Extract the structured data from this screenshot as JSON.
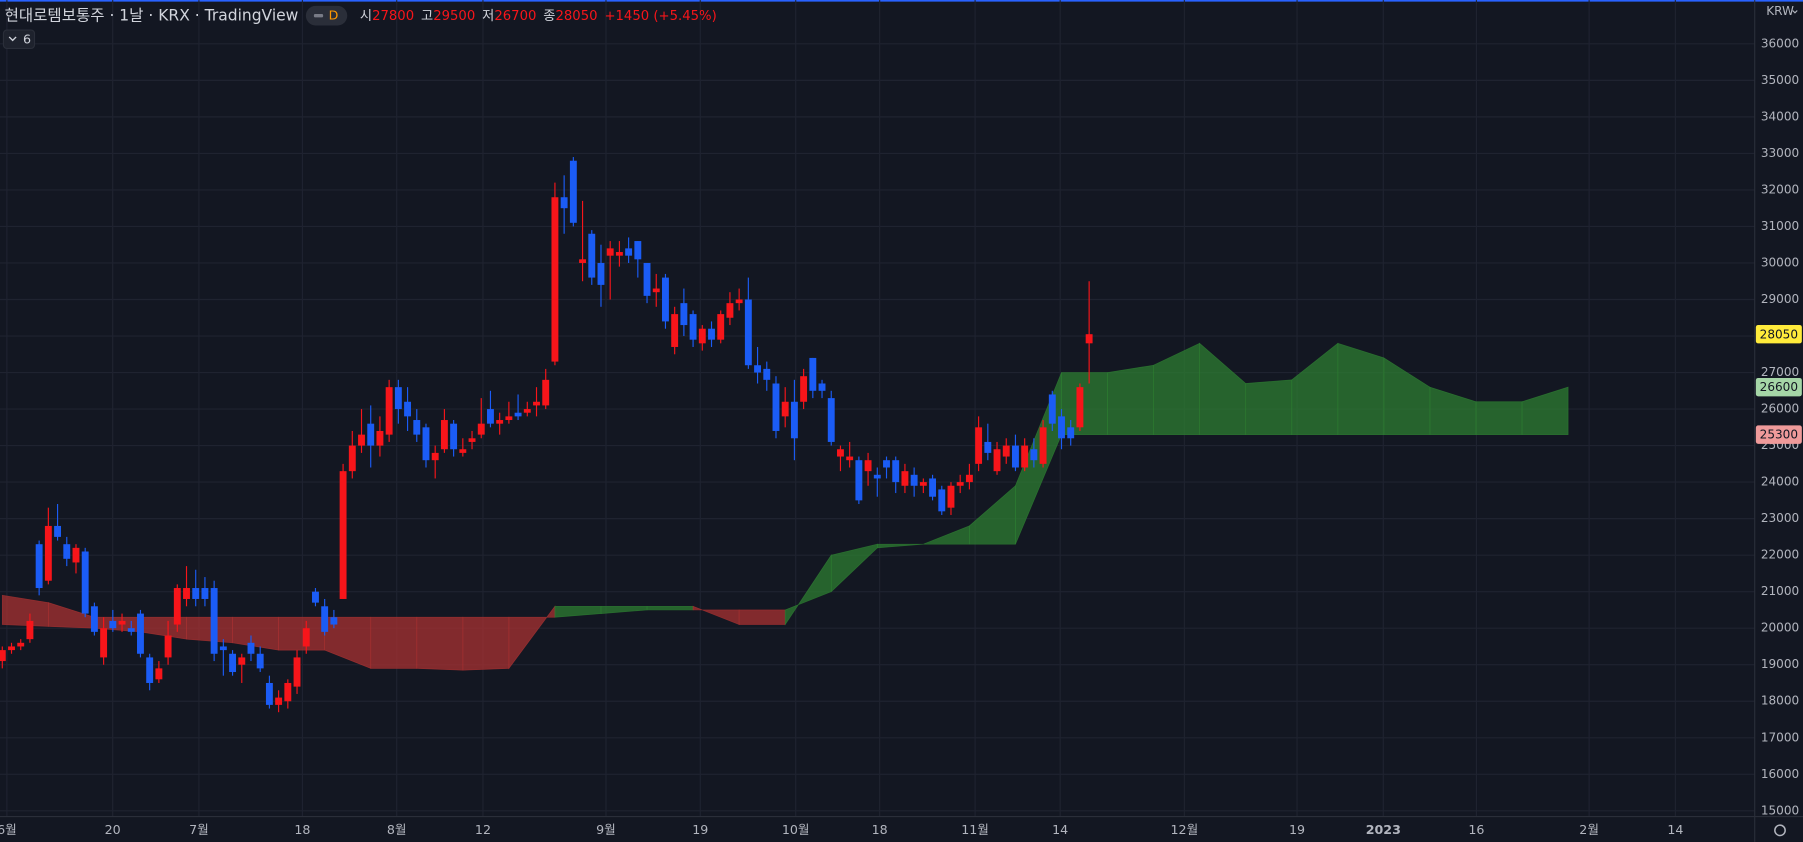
{
  "chart_data": {
    "type": "candlestick",
    "title": "현대로템보통주 · 1날 · KRX · TradingView",
    "interval_badge": "D",
    "legend": {
      "open_label": "시",
      "open": 27800,
      "high_label": "고",
      "high": 29500,
      "low_label": "저",
      "low": 26700,
      "close_label": "종",
      "close": 28050,
      "change": "+1450 (+5.45%)"
    },
    "indicator_count": "6",
    "currency": "KRW",
    "up_color": "#f7151a",
    "down_color": "#1b5cf5",
    "ylim": [
      15000,
      36000
    ],
    "yticks": [
      15000,
      16000,
      17000,
      18000,
      19000,
      20000,
      21000,
      22000,
      23000,
      24000,
      25000,
      26000,
      27000,
      28000,
      29000,
      30000,
      31000,
      32000,
      33000,
      34000,
      35000,
      36000
    ],
    "grid": true,
    "xlabels": [
      "6월",
      "20",
      "7월",
      "18",
      "8월",
      "12",
      "9월",
      "19",
      "10월",
      "18",
      "11월",
      "14",
      "12월",
      "19",
      "2023",
      "16",
      "2월",
      "14"
    ],
    "candles": [
      [
        19100,
        19500,
        18900,
        19400
      ],
      [
        19400,
        19600,
        19300,
        19500
      ],
      [
        19500,
        19700,
        19400,
        19600
      ],
      [
        19700,
        20400,
        19600,
        20200
      ],
      [
        22300,
        22400,
        20900,
        21100
      ],
      [
        21300,
        23300,
        21200,
        22800
      ],
      [
        22800,
        23400,
        22400,
        22500
      ],
      [
        22300,
        22500,
        21700,
        21900
      ],
      [
        21800,
        22300,
        21500,
        22200
      ],
      [
        22100,
        22200,
        20300,
        20400
      ],
      [
        20600,
        20700,
        19800,
        19900
      ],
      [
        19200,
        20300,
        19000,
        20000
      ],
      [
        20200,
        20500,
        19900,
        20000
      ],
      [
        20100,
        20400,
        19900,
        20200
      ],
      [
        20000,
        20200,
        19800,
        19900
      ],
      [
        20400,
        20500,
        19200,
        19300
      ],
      [
        19200,
        19300,
        18300,
        18500
      ],
      [
        18600,
        19100,
        18500,
        18900
      ],
      [
        19200,
        20200,
        19000,
        19800
      ],
      [
        20100,
        21200,
        19900,
        21100
      ],
      [
        20800,
        21700,
        20600,
        21100
      ],
      [
        21100,
        21600,
        20600,
        20800
      ],
      [
        21100,
        21400,
        20600,
        20800
      ],
      [
        21100,
        21300,
        19100,
        19300
      ],
      [
        19500,
        19700,
        18700,
        19400
      ],
      [
        19300,
        19400,
        18700,
        18800
      ],
      [
        19000,
        19300,
        18500,
        19200
      ],
      [
        19600,
        19800,
        19100,
        19300
      ],
      [
        19300,
        19500,
        18800,
        18900
      ],
      [
        18500,
        18700,
        17800,
        17900
      ],
      [
        17900,
        18300,
        17700,
        18100
      ],
      [
        18000,
        18600,
        17800,
        18500
      ],
      [
        18400,
        19400,
        18200,
        19200
      ],
      [
        19500,
        20200,
        19300,
        20000
      ],
      [
        21000,
        21100,
        20600,
        20700
      ],
      [
        20600,
        20800,
        19800,
        19900
      ],
      [
        20300,
        20500,
        20000,
        20100
      ],
      [
        20800,
        24500,
        20800,
        24300
      ],
      [
        24300,
        25400,
        24100,
        25000
      ],
      [
        25000,
        26000,
        24800,
        25300
      ],
      [
        25600,
        26100,
        24400,
        25000
      ],
      [
        25000,
        25800,
        24700,
        25400
      ],
      [
        25300,
        26800,
        25100,
        26600
      ],
      [
        26600,
        26800,
        25600,
        26000
      ],
      [
        26200,
        26600,
        25400,
        25800
      ],
      [
        25700,
        26000,
        25100,
        25300
      ],
      [
        25500,
        25600,
        24400,
        24600
      ],
      [
        24600,
        25000,
        24100,
        24800
      ],
      [
        24900,
        26000,
        24800,
        25700
      ],
      [
        25600,
        25700,
        24700,
        24900
      ],
      [
        24800,
        25200,
        24700,
        24900
      ],
      [
        25100,
        25400,
        24900,
        25200
      ],
      [
        25300,
        26300,
        25200,
        25600
      ],
      [
        26000,
        26500,
        25500,
        25600
      ],
      [
        25600,
        25900,
        25300,
        25700
      ],
      [
        25700,
        26200,
        25600,
        25800
      ],
      [
        25900,
        26400,
        25700,
        25800
      ],
      [
        25900,
        26200,
        25800,
        26000
      ],
      [
        26100,
        26600,
        25800,
        26200
      ],
      [
        26100,
        27100,
        26000,
        26800
      ],
      [
        27300,
        32200,
        27200,
        31800
      ],
      [
        31800,
        32400,
        30800,
        31500
      ],
      [
        32800,
        32900,
        31000,
        31100
      ],
      [
        30000,
        31700,
        29500,
        30100
      ],
      [
        30800,
        30900,
        29400,
        29600
      ],
      [
        30000,
        30500,
        28800,
        29400
      ],
      [
        30200,
        30600,
        29000,
        30400
      ],
      [
        30200,
        30600,
        29900,
        30300
      ],
      [
        30400,
        30700,
        30000,
        30200
      ],
      [
        30600,
        30600,
        29600,
        30100
      ],
      [
        30000,
        30000,
        28900,
        29100
      ],
      [
        29200,
        29700,
        28800,
        29300
      ],
      [
        29600,
        29700,
        28200,
        28400
      ],
      [
        27700,
        28800,
        27500,
        28600
      ],
      [
        28900,
        29300,
        28000,
        28300
      ],
      [
        28600,
        28700,
        27700,
        27900
      ],
      [
        27800,
        28300,
        27600,
        28200
      ],
      [
        28200,
        28400,
        27700,
        27900
      ],
      [
        27900,
        28700,
        27800,
        28600
      ],
      [
        28500,
        29200,
        28300,
        28900
      ],
      [
        28900,
        29300,
        28700,
        29000
      ],
      [
        29000,
        29600,
        27100,
        27200
      ],
      [
        27200,
        27700,
        26700,
        27000
      ],
      [
        27100,
        27300,
        26500,
        26800
      ],
      [
        26700,
        26900,
        25200,
        25400
      ],
      [
        25800,
        26600,
        25500,
        26200
      ],
      [
        26200,
        26800,
        24600,
        25200
      ],
      [
        26200,
        27100,
        26000,
        26900
      ],
      [
        27400,
        27400,
        26300,
        26500
      ],
      [
        26700,
        26800,
        26300,
        26500
      ],
      [
        26300,
        26500,
        25000,
        25100
      ],
      [
        24700,
        25000,
        24300,
        24900
      ],
      [
        24600,
        25100,
        24400,
        24700
      ],
      [
        24600,
        24700,
        23400,
        23500
      ],
      [
        24300,
        24800,
        23900,
        24600
      ],
      [
        24200,
        24400,
        23600,
        24100
      ],
      [
        24600,
        24700,
        24100,
        24400
      ],
      [
        24600,
        24700,
        23700,
        24000
      ],
      [
        23900,
        24500,
        23700,
        24300
      ],
      [
        24200,
        24400,
        23600,
        23900
      ],
      [
        23900,
        24100,
        23700,
        24000
      ],
      [
        24100,
        24200,
        23500,
        23600
      ],
      [
        23800,
        23900,
        23100,
        23200
      ],
      [
        23300,
        24000,
        23100,
        23900
      ],
      [
        23900,
        24200,
        23700,
        24000
      ],
      [
        24000,
        24500,
        23800,
        24200
      ],
      [
        24500,
        25800,
        24300,
        25500
      ],
      [
        25100,
        25600,
        24600,
        24800
      ],
      [
        24300,
        25100,
        24200,
        24900
      ],
      [
        24700,
        25200,
        24500,
        25000
      ],
      [
        25000,
        25300,
        24300,
        24400
      ],
      [
        24400,
        25200,
        24300,
        25000
      ],
      [
        24900,
        25200,
        24400,
        24600
      ],
      [
        24500,
        25700,
        24400,
        25500
      ],
      [
        26400,
        26500,
        25400,
        25600
      ],
      [
        25800,
        26000,
        24900,
        25200
      ],
      [
        25500,
        25700,
        25000,
        25200
      ],
      [
        25500,
        26700,
        25400,
        26600
      ],
      [
        27800,
        29500,
        26700,
        28050
      ]
    ],
    "cloud_up_color": "#2e7d32",
    "cloud_down_color": "#a83232",
    "span_a": [
      20100,
      20050,
      20000,
      19900,
      19700,
      19600,
      19400,
      19400,
      18900,
      18900,
      18850,
      18900,
      20600,
      20600,
      20600,
      20600,
      20100,
      20100,
      22000,
      22300,
      22300,
      22800,
      23900,
      27000,
      27000,
      27200,
      27800,
      26700,
      26800,
      27800,
      27400,
      26600,
      26200,
      26200,
      26600
    ],
    "span_b": [
      20900,
      20700,
      20300,
      20300,
      20300,
      20300,
      20300,
      20300,
      20300,
      20300,
      20300,
      20300,
      20300,
      20400,
      20500,
      20500,
      20500,
      20500,
      21000,
      22200,
      22300,
      22300,
      22300,
      25300,
      25300,
      25300,
      25300,
      25300,
      25300,
      25300,
      25300,
      25300,
      25300,
      25300,
      25300
    ],
    "last_price": 28050,
    "last_price_color": "#ffeb3b",
    "span_labels": [
      26600,
      25300
    ],
    "span_label_colors": [
      "#a5d6a7",
      "#ef9a9a"
    ]
  }
}
